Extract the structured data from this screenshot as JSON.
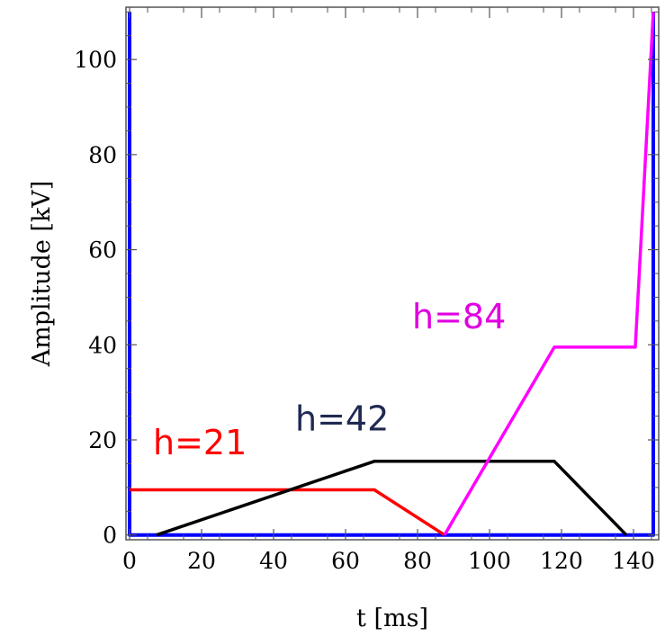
{
  "chart_data": {
    "type": "line",
    "xlabel": "t [ms]",
    "ylabel": "Amplitude [kV]",
    "xlim": [
      -1,
      147
    ],
    "ylim": [
      -1,
      111
    ],
    "xticks": [
      0,
      20,
      40,
      60,
      80,
      100,
      120,
      140
    ],
    "yticks": [
      0,
      20,
      40,
      60,
      80,
      100
    ],
    "grid": false,
    "legend": "none",
    "series": [
      {
        "color": "#0000ff",
        "x": [
          0,
          0,
          145.5,
          145.5
        ],
        "y": [
          110,
          0,
          0,
          110
        ]
      },
      {
        "color": "#ff0000",
        "x": [
          0,
          68,
          87.5
        ],
        "y": [
          9.5,
          9.5,
          0
        ]
      },
      {
        "color": "#000000",
        "x": [
          7.5,
          68,
          118,
          138
        ],
        "y": [
          0,
          15.5,
          15.5,
          0
        ]
      },
      {
        "color": "#ff00ff",
        "x": [
          87.5,
          118,
          140.5,
          145.5
        ],
        "y": [
          0,
          39.5,
          39.5,
          110
        ]
      }
    ],
    "annotations": [
      {
        "text": "h=21",
        "color": "#ff0000",
        "x": 6.5,
        "y": 17
      },
      {
        "text": "h=42",
        "color": "#1f2a52",
        "x": 46,
        "y": 22
      },
      {
        "text": "h=84",
        "color": "#e000e0",
        "x": 78.5,
        "y": 43.5
      }
    ]
  }
}
